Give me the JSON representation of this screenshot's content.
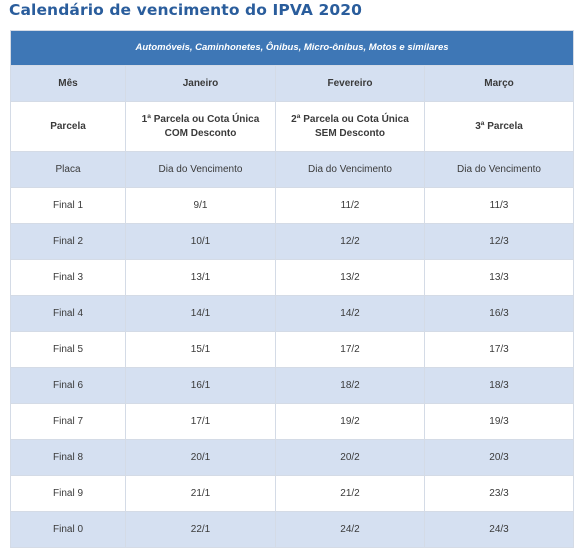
{
  "title": "Calendário de vencimento do IPVA 2020",
  "category": "Automóveis, Caminhonetes, Ônibus, Micro-ônibus, Motos e similares",
  "header_month": [
    "Mês",
    "Janeiro",
    "Fevereiro",
    "Março"
  ],
  "header_parcela": [
    {
      "line1": "Parcela",
      "line2": ""
    },
    {
      "line1": "1ª Parcela ou Cota Única",
      "line2": "COM Desconto"
    },
    {
      "line1": "2ª Parcela ou Cota Única",
      "line2": "SEM Desconto"
    },
    {
      "line1": "3ª Parcela",
      "line2": ""
    }
  ],
  "header_placa": [
    "Placa",
    "Dia do Vencimento",
    "Dia do Vencimento",
    "Dia do Vencimento"
  ],
  "rows": [
    [
      "Final 1",
      "9/1",
      "11/2",
      "11/3"
    ],
    [
      "Final 2",
      "10/1",
      "12/2",
      "12/3"
    ],
    [
      "Final 3",
      "13/1",
      "13/2",
      "13/3"
    ],
    [
      "Final 4",
      "14/1",
      "14/2",
      "16/3"
    ],
    [
      "Final 5",
      "15/1",
      "17/2",
      "17/3"
    ],
    [
      "Final 6",
      "16/1",
      "18/2",
      "18/3"
    ],
    [
      "Final 7",
      "17/1",
      "19/2",
      "19/3"
    ],
    [
      "Final 8",
      "20/1",
      "20/2",
      "20/3"
    ],
    [
      "Final 9",
      "21/1",
      "21/2",
      "23/3"
    ],
    [
      "Final 0",
      "22/1",
      "24/2",
      "24/3"
    ]
  ]
}
